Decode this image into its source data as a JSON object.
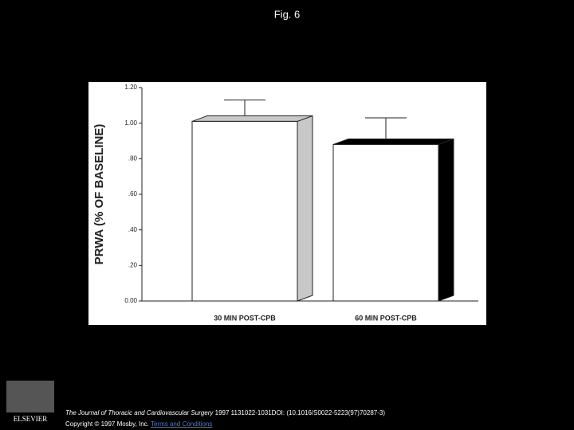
{
  "chart_data": {
    "type": "bar",
    "title": "Fig. 6",
    "y_label": "PRWA (% OF BASELINE)",
    "categories": [
      "30 MIN POST-CPB",
      "60 MIN POST-CPB"
    ],
    "values": [
      1.01,
      0.88
    ],
    "errors": [
      0.12,
      0.15
    ],
    "colors": [
      "#ffffff",
      "#ffffff"
    ],
    "side_colors": [
      "#c8c8c8",
      "#000000"
    ],
    "ylim": [
      0,
      1.2
    ],
    "yticks": [
      {
        "value": 0,
        "label": "0.00"
      },
      {
        "value": 0.2,
        "label": ".20"
      },
      {
        "value": 0.4,
        "label": ".40"
      },
      {
        "value": 0.6,
        "label": ".60"
      },
      {
        "value": 0.8,
        "label": ".80"
      },
      {
        "value": 1.0,
        "label": "1.00"
      },
      {
        "value": 1.2,
        "label": "1.20"
      }
    ]
  },
  "footer": {
    "journal": "The Journal of Thoracic and Cardiovascular Surgery",
    "citation": " 1997 1131022-1031DOI: (10.1016/S0022-5223(97)70287-3)",
    "copyright": "Copyright © 1997 Mosby, Inc. ",
    "link": "Terms and Conditions",
    "logo": "ELSEVIER"
  }
}
